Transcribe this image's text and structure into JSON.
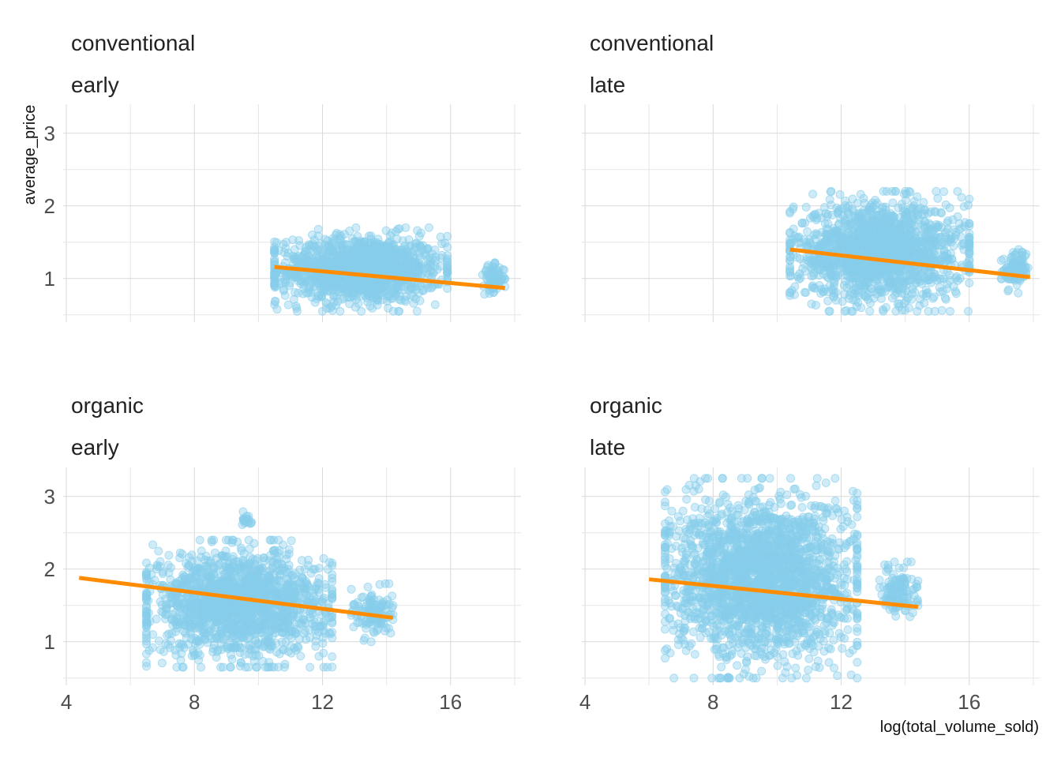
{
  "chart_data": {
    "type": "scatter",
    "xlabel": "log(total_volume_sold)",
    "ylabel": "average_price",
    "xlim": [
      3.9,
      18.2
    ],
    "ylim": [
      0.4,
      3.4
    ],
    "x_ticks": [
      4,
      8,
      12,
      16
    ],
    "y_ticks": [
      1,
      2,
      3
    ],
    "grid": true,
    "point_color": "#87CEEB",
    "line_color": "#FF8C00",
    "panels": [
      {
        "row_label": "conventional",
        "col_label": "early",
        "trend_line": {
          "x": [
            10.5,
            17.7
          ],
          "y": [
            1.16,
            0.87
          ]
        },
        "clusters": [
          {
            "x_range": [
              10.5,
              15.9
            ],
            "y_range": [
              0.55,
              1.7
            ],
            "n": 1300
          },
          {
            "x_range": [
              17.0,
              17.7
            ],
            "y_range": [
              0.78,
              1.22
            ],
            "n": 90
          }
        ]
      },
      {
        "row_label": "conventional",
        "col_label": "late",
        "trend_line": {
          "x": [
            10.4,
            17.9
          ],
          "y": [
            1.4,
            1.02
          ]
        },
        "clusters": [
          {
            "x_range": [
              10.4,
              16.0
            ],
            "y_range": [
              0.55,
              2.2
            ],
            "n": 1600
          },
          {
            "x_range": [
              17.0,
              17.9
            ],
            "y_range": [
              0.8,
              1.45
            ],
            "n": 90
          }
        ]
      },
      {
        "row_label": "organic",
        "col_label": "early",
        "trend_line": {
          "x": [
            4.4,
            14.2
          ],
          "y": [
            1.88,
            1.33
          ]
        },
        "clusters": [
          {
            "x_range": [
              6.5,
              12.3
            ],
            "y_range": [
              0.65,
              2.4
            ],
            "n": 1600
          },
          {
            "x_range": [
              12.9,
              14.2
            ],
            "y_range": [
              1.0,
              1.8
            ],
            "n": 120
          },
          {
            "x_range": [
              9.5,
              9.8
            ],
            "y_range": [
              2.55,
              2.8
            ],
            "n": 20
          }
        ]
      },
      {
        "row_label": "organic",
        "col_label": "late",
        "trend_line": {
          "x": [
            6.0,
            14.4
          ],
          "y": [
            1.86,
            1.48
          ]
        },
        "clusters": [
          {
            "x_range": [
              6.5,
              12.5
            ],
            "y_range": [
              0.5,
              3.25
            ],
            "n": 2200
          },
          {
            "x_range": [
              13.2,
              14.4
            ],
            "y_range": [
              1.3,
              2.1
            ],
            "n": 120
          }
        ]
      }
    ]
  }
}
